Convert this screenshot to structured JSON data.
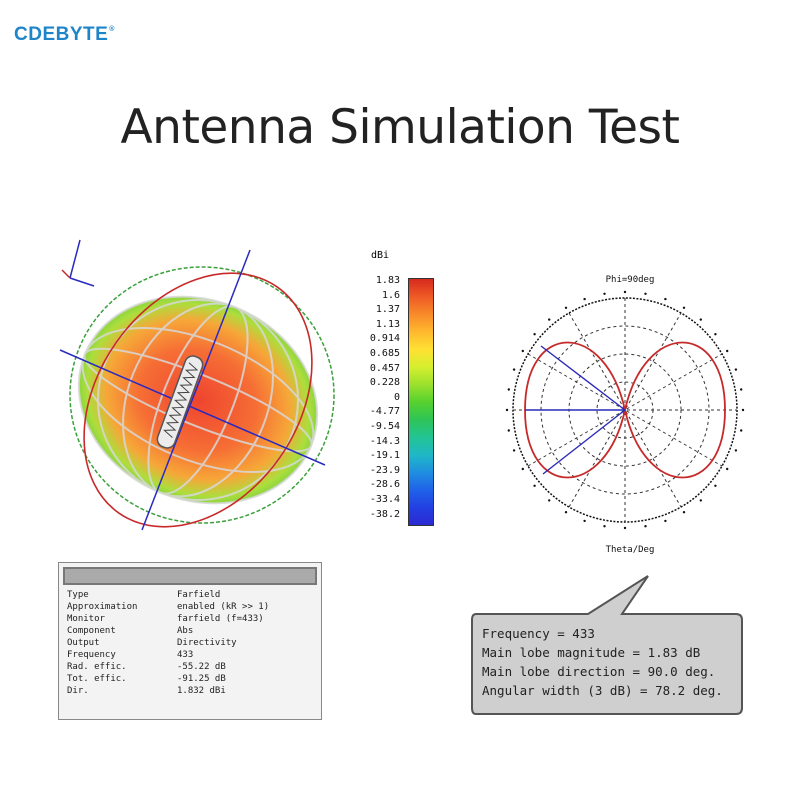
{
  "brand": {
    "name": "CDEBYTE",
    "mark": "®"
  },
  "title": "Antenna Simulation Test",
  "colorbar": {
    "unit": "dBi",
    "labels": [
      "1.83",
      "1.6",
      "1.37",
      "1.13",
      "0.914",
      "0.685",
      "0.457",
      "0.228",
      "0",
      "-4.77",
      "-9.54",
      "-14.3",
      "-19.1",
      "-23.9",
      "-28.6",
      "-33.4",
      "-38.2"
    ],
    "colors": [
      "#d62a1f",
      "#ee5a25",
      "#f88a2a",
      "#ffb82e",
      "#ffe033",
      "#d6ef2e",
      "#9be12d",
      "#57d12e",
      "#2ec456",
      "#23c494",
      "#1fb8c6",
      "#1f8fe0",
      "#1f62e8",
      "#2340e2",
      "#2a2ad0"
    ]
  },
  "polar": {
    "top_label": "Phi=90deg",
    "bottom_label": "Theta/Deg"
  },
  "properties": {
    "rows": [
      {
        "key": "Type",
        "value": "Farfield"
      },
      {
        "key": "Approximation",
        "value": "enabled (kR >> 1)"
      },
      {
        "key": "Monitor",
        "value": "farfield (f=433)"
      },
      {
        "key": "Component",
        "value": "Abs"
      },
      {
        "key": "Output",
        "value": "Directivity"
      },
      {
        "key": "Frequency",
        "value": "433"
      },
      {
        "key": "Rad. effic.",
        "value": "-55.22 dB"
      },
      {
        "key": "Tot. effic.",
        "value": "-91.25 dB"
      },
      {
        "key": "Dir.",
        "value": "1.832 dBi"
      }
    ]
  },
  "callout": {
    "lines": [
      "Frequency = 433",
      "Main lobe magnitude =   1.83 dB",
      "Main lobe direction =  90.0 deg.",
      "Angular width (3 dB) =  78.2 deg."
    ]
  }
}
